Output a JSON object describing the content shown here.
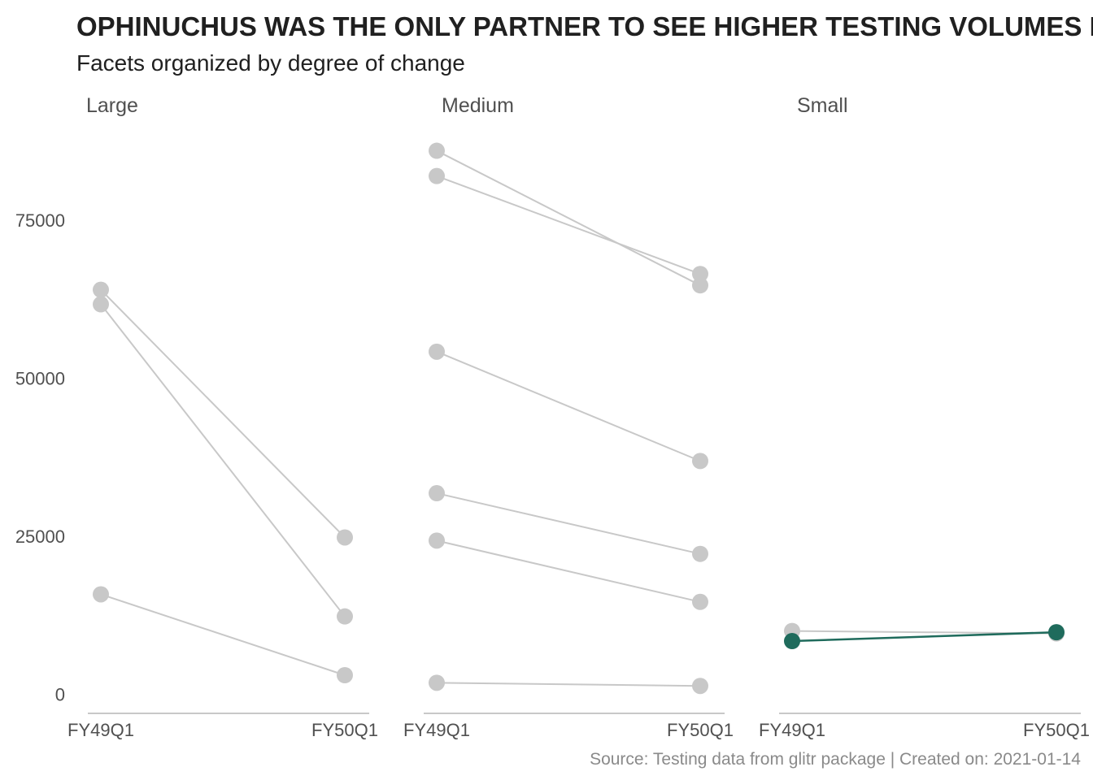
{
  "chart_data": {
    "type": "line",
    "title": "OPHINUCHUS WAS THE ONLY PARTNER TO SEE HIGHER TESTING VOLUMES IN",
    "subtitle": "Facets organized by degree of change",
    "caption": "Source: Testing data from glitr package | Created on: 2021-01-14",
    "x": [
      "FY49Q1",
      "FY50Q1"
    ],
    "y_ticks": [
      0,
      25000,
      50000,
      75000
    ],
    "ylim": [
      -1500,
      88000
    ],
    "grid": false,
    "colors": {
      "default": "#c8c8c8",
      "highlight": "#1f6b5c"
    },
    "facets": [
      {
        "label": "Large",
        "series": [
          {
            "values": [
              64000,
              24800
            ]
          },
          {
            "values": [
              61700,
              12300
            ]
          },
          {
            "values": [
              15800,
              3000
            ]
          }
        ]
      },
      {
        "label": "Medium",
        "series": [
          {
            "values": [
              86000,
              64700
            ]
          },
          {
            "values": [
              82000,
              66500
            ]
          },
          {
            "values": [
              54200,
              36900
            ]
          },
          {
            "values": [
              31800,
              22200
            ]
          },
          {
            "values": [
              24300,
              14600
            ]
          },
          {
            "values": [
              1800,
              1300
            ]
          }
        ]
      },
      {
        "label": "Small",
        "series": [
          {
            "values": [
              10000,
              9600
            ],
            "highlight": false
          },
          {
            "values": [
              8400,
              9800
            ],
            "highlight": true
          }
        ]
      }
    ]
  }
}
